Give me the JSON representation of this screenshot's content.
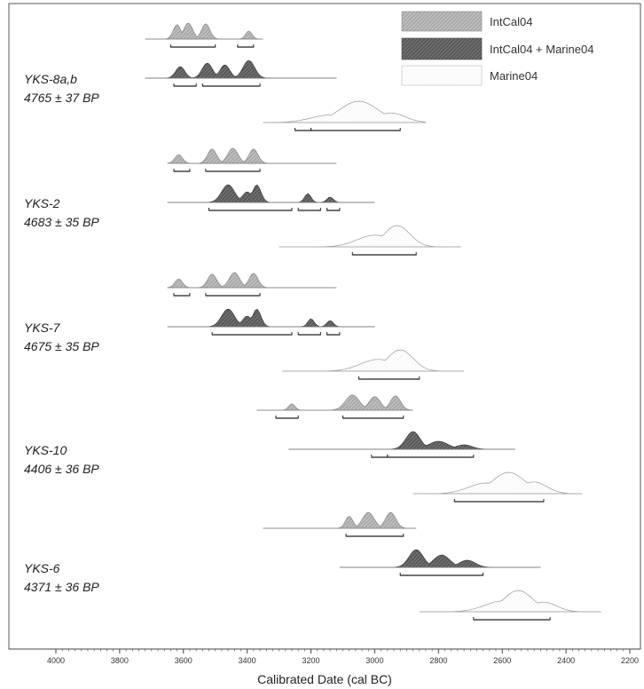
{
  "chart_data": {
    "type": "area",
    "title": "",
    "xlabel": "Calibrated Date (cal BC)",
    "ylabel": "",
    "x_reversed": true,
    "xlim": [
      4000,
      2200
    ],
    "x_ticks": [
      "4000",
      "3800",
      "3600",
      "3400",
      "3200",
      "3000",
      "2800",
      "2600",
      "2400",
      "2200"
    ],
    "grid": false,
    "legend_position": "top-right",
    "legend": [
      {
        "name": "IntCal04",
        "style": "intcal"
      },
      {
        "name": "IntCal04 + Marine04",
        "style": "mixed"
      },
      {
        "name": "Marine04",
        "style": "marine"
      }
    ],
    "colors": {
      "intcal": "#a9a9a9",
      "mixed": "#555555",
      "marine": "#ffffff",
      "outline": "#777777",
      "range_bar": "#222222"
    },
    "samples": [
      {
        "name": "YKS-8a,b",
        "age": "4765 ± 37 BP",
        "curves": [
          {
            "kind": "intcal",
            "range": [
              3720,
              3350
            ],
            "ranges_bc": [
              [
                3640,
                3500
              ],
              [
                3430,
                3380
              ]
            ],
            "peaks": [
              [
                3620,
                0.9,
                12
              ],
              [
                3585,
                1.0,
                14
              ],
              [
                3530,
                0.95,
                13
              ],
              [
                3395,
                0.5,
                10
              ]
            ]
          },
          {
            "kind": "mixed",
            "range": [
              3720,
              3120
            ],
            "ranges_bc": [
              [
                3630,
                3560
              ],
              [
                3540,
                3360
              ]
            ],
            "peaks": [
              [
                3610,
                0.65,
                14
              ],
              [
                3525,
                0.85,
                16
              ],
              [
                3470,
                0.75,
                15
              ],
              [
                3395,
                1.0,
                18
              ]
            ]
          },
          {
            "kind": "marine",
            "range": [
              3350,
              2840
            ],
            "ranges_bc": [
              [
                3250,
                3200
              ],
              [
                3200,
                2920
              ]
            ],
            "peaks": [
              [
                3140,
                0.35,
                60
              ],
              [
                3050,
                1.0,
                60
              ],
              [
                2950,
                0.45,
                45
              ]
            ]
          }
        ]
      },
      {
        "name": "YKS-2",
        "age": "4683 ± 35 BP",
        "curves": [
          {
            "kind": "intcal",
            "range": [
              3650,
              3120
            ],
            "ranges_bc": [
              [
                3630,
                3580
              ],
              [
                3530,
                3360
              ]
            ],
            "peaks": [
              [
                3615,
                0.55,
                12
              ],
              [
                3510,
                0.9,
                14
              ],
              [
                3445,
                0.95,
                16
              ],
              [
                3380,
                0.9,
                14
              ]
            ]
          },
          {
            "kind": "mixed",
            "range": [
              3650,
              3000
            ],
            "ranges_bc": [
              [
                3520,
                3260
              ],
              [
                3240,
                3170
              ],
              [
                3150,
                3110
              ]
            ],
            "peaks": [
              [
                3460,
                1.0,
                20
              ],
              [
                3400,
                0.6,
                15
              ],
              [
                3370,
                1.0,
                13
              ],
              [
                3210,
                0.5,
                10
              ],
              [
                3140,
                0.3,
                10
              ]
            ]
          },
          {
            "kind": "marine",
            "range": [
              3300,
              2730
            ],
            "ranges_bc": [
              [
                3070,
                2870
              ]
            ],
            "peaks": [
              [
                3000,
                0.55,
                55
              ],
              [
                2930,
                1.0,
                40
              ]
            ]
          }
        ]
      },
      {
        "name": "YKS-7",
        "age": "4675 ± 35 BP",
        "curves": [
          {
            "kind": "intcal",
            "range": [
              3650,
              3120
            ],
            "ranges_bc": [
              [
                3630,
                3580
              ],
              [
                3530,
                3360
              ]
            ],
            "peaks": [
              [
                3615,
                0.55,
                12
              ],
              [
                3510,
                0.85,
                14
              ],
              [
                3440,
                0.95,
                16
              ],
              [
                3380,
                0.9,
                14
              ]
            ]
          },
          {
            "kind": "mixed",
            "range": [
              3650,
              3000
            ],
            "ranges_bc": [
              [
                3510,
                3260
              ],
              [
                3240,
                3170
              ],
              [
                3150,
                3110
              ]
            ],
            "peaks": [
              [
                3460,
                1.0,
                20
              ],
              [
                3400,
                0.6,
                15
              ],
              [
                3370,
                1.0,
                13
              ],
              [
                3200,
                0.45,
                10
              ],
              [
                3140,
                0.35,
                10
              ]
            ]
          },
          {
            "kind": "marine",
            "range": [
              3290,
              2720
            ],
            "ranges_bc": [
              [
                3050,
                2860
              ]
            ],
            "peaks": [
              [
                2990,
                0.55,
                55
              ],
              [
                2920,
                1.0,
                40
              ]
            ]
          }
        ]
      },
      {
        "name": "YKS-10",
        "age": "4406 ± 36 BP",
        "curves": [
          {
            "kind": "intcal",
            "range": [
              3370,
              2880
            ],
            "ranges_bc": [
              [
                3310,
                3240
              ],
              [
                3100,
                2910
              ]
            ],
            "peaks": [
              [
                3260,
                0.4,
                10
              ],
              [
                3070,
                0.95,
                22
              ],
              [
                3000,
                0.85,
                18
              ],
              [
                2935,
                0.9,
                16
              ]
            ]
          },
          {
            "kind": "mixed",
            "range": [
              3270,
              2560
            ],
            "ranges_bc": [
              [
                3010,
                2960
              ],
              [
                2960,
                2690
              ]
            ],
            "peaks": [
              [
                2880,
                1.0,
                22
              ],
              [
                2800,
                0.45,
                30
              ],
              [
                2720,
                0.25,
                25
              ]
            ]
          },
          {
            "kind": "marine",
            "range": [
              2880,
              2350
            ],
            "ranges_bc": [
              [
                2750,
                2470
              ]
            ],
            "peaks": [
              [
                2650,
                0.5,
                55
              ],
              [
                2580,
                1.0,
                50
              ],
              [
                2500,
                0.55,
                40
              ]
            ]
          }
        ]
      },
      {
        "name": "YKS-6",
        "age": "4371 ± 36 BP",
        "curves": [
          {
            "kind": "intcal",
            "range": [
              3350,
              2870
            ],
            "ranges_bc": [
              [
                3090,
                2910
              ]
            ],
            "peaks": [
              [
                3080,
                0.75,
                12
              ],
              [
                3020,
                1.0,
                18
              ],
              [
                2950,
                1.0,
                16
              ]
            ]
          },
          {
            "kind": "mixed",
            "range": [
              3110,
              2480
            ],
            "ranges_bc": [
              [
                2920,
                2660
              ]
            ],
            "peaks": [
              [
                2870,
                1.0,
                22
              ],
              [
                2790,
                0.7,
                25
              ],
              [
                2710,
                0.4,
                25
              ]
            ]
          },
          {
            "kind": "marine",
            "range": [
              2860,
              2290
            ],
            "ranges_bc": [
              [
                2690,
                2450
              ]
            ],
            "peaks": [
              [
                2600,
                0.5,
                55
              ],
              [
                2550,
                1.0,
                45
              ],
              [
                2470,
                0.45,
                40
              ]
            ]
          }
        ]
      }
    ]
  }
}
